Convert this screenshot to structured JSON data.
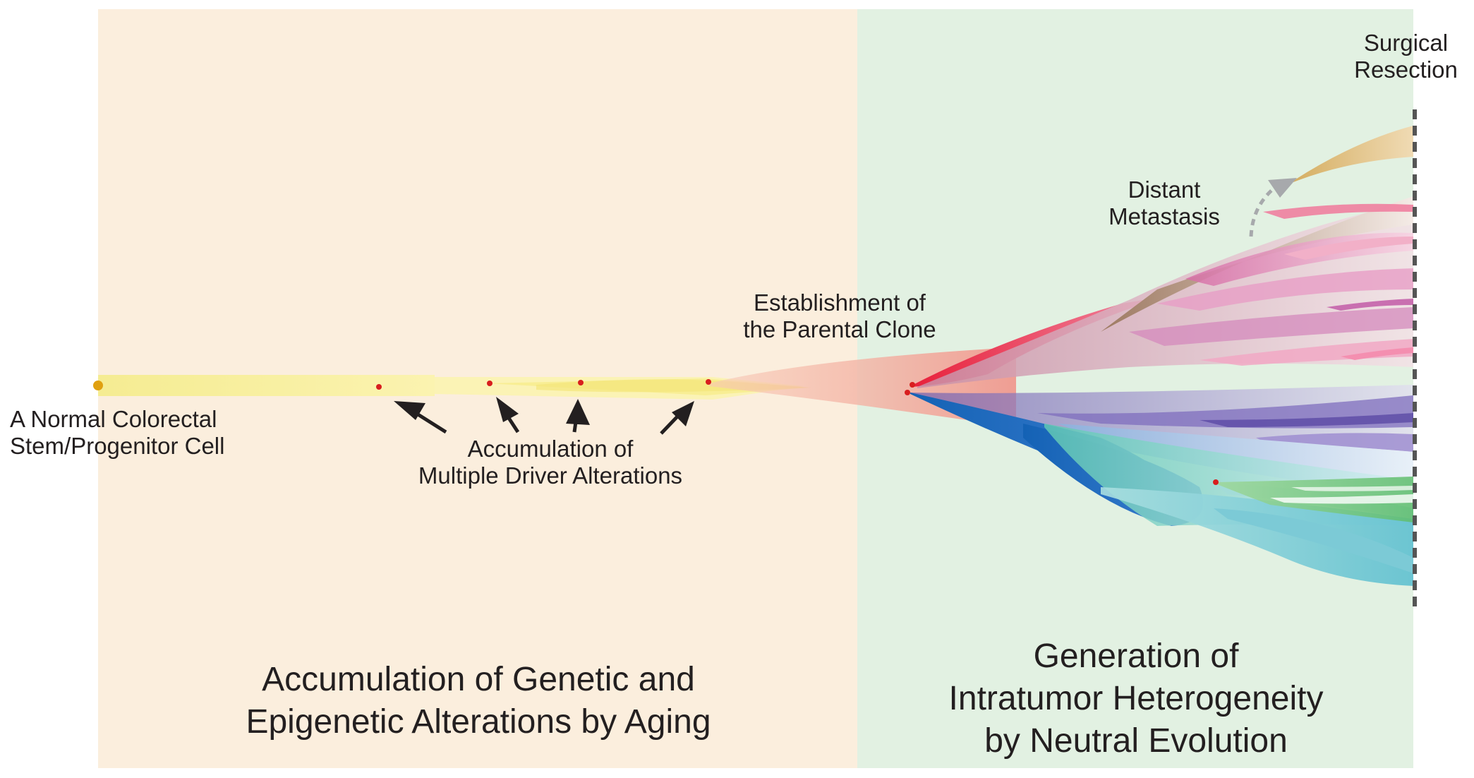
{
  "labels": {
    "normal_cell_line1": "A Normal Colorectal",
    "normal_cell_line2": "Stem/Progenitor Cell",
    "drivers_line1": "Accumulation of",
    "drivers_line2": "Multiple Driver Alterations",
    "parental_line1": "Establishment of",
    "parental_line2": "the Parental Clone",
    "metastasis_line1": "Distant",
    "metastasis_line2": "Metastasis",
    "resection_line1": "Surgical",
    "resection_line2": "Resection"
  },
  "phases": {
    "aging_line1": "Accumulation of Genetic and",
    "aging_line2": "Epigenetic Alterations by Aging",
    "ith_line1": "Generation of",
    "ith_line2": "Intratumor Heterogeneity",
    "ith_line3": "by Neutral Evolution"
  },
  "colors": {
    "aging_background": "#fbeedd",
    "ith_background": "#e2f1e2",
    "lineage_yellow": "#f6ef9c",
    "parental_salmon": "#f2a99a",
    "red_branch": "#e8203a",
    "blue_branch": "#1462b5",
    "metastasis_tan": "#d8b46e",
    "alteration_dot": "#d81e1e",
    "normal_cell_dot": "#e0a010",
    "resection_line": "#555555"
  },
  "icons": {
    "driver_arrow": "black-arrow-icon",
    "metastasis_arrow": "grey-dashed-arrow-icon"
  }
}
